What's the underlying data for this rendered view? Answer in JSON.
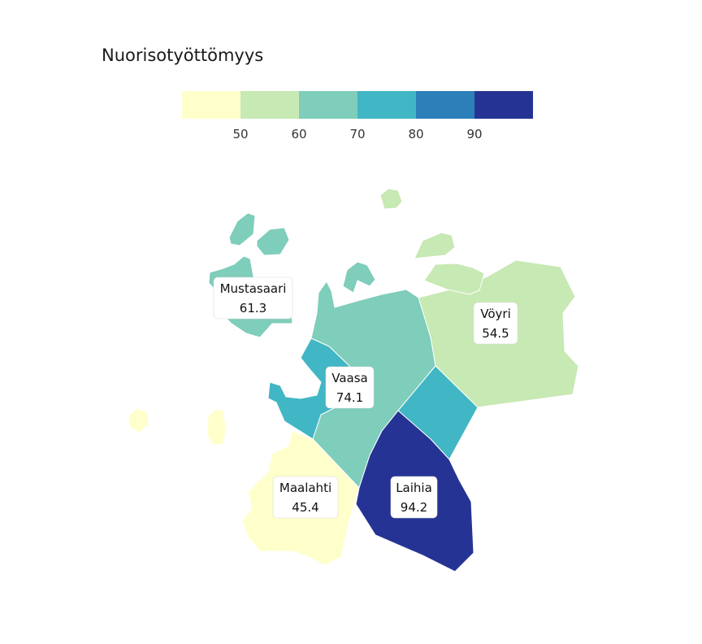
{
  "title": "Nuorisotyöttömyys",
  "legend": {
    "ticks": [
      "50",
      "60",
      "70",
      "80",
      "90"
    ],
    "colors": [
      "#ffffcc",
      "#c7e9b4",
      "#7fcdbb",
      "#41b6c4",
      "#2c7fb8",
      "#253494"
    ]
  },
  "regions": [
    {
      "name": "Mustasaari",
      "value": "61.3",
      "color": "#7fcdbb"
    },
    {
      "name": "Vöyri",
      "value": "54.5",
      "color": "#c7e9b4"
    },
    {
      "name": "Vaasa",
      "value": "74.1",
      "color": "#41b6c4"
    },
    {
      "name": "Maalahti",
      "value": "45.4",
      "color": "#ffffcc"
    },
    {
      "name": "Laihia",
      "value": "94.2",
      "color": "#253494"
    }
  ]
}
